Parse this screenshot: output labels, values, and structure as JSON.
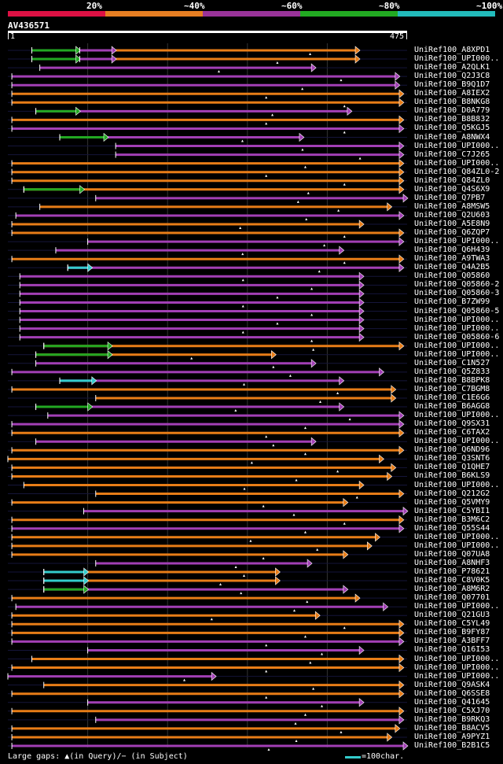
{
  "scale": {
    "labels": [
      "20%",
      "~40%",
      "~60%",
      "~80%",
      "~100%"
    ],
    "colors": [
      "#dd1144",
      "#e67e22",
      "#993399",
      "#22aa22",
      "#22bbbb"
    ]
  },
  "query": {
    "name": "AV436571",
    "start": "1",
    "end": "475"
  },
  "colors": {
    "orange": "#e87d17",
    "purple": "#a23fb5",
    "green": "#22a822",
    "cyan": "#33cccc"
  },
  "hits": [
    {
      "id": "UniRef100_A8XPD1",
      "c": "o",
      "a": 0.06,
      "b": 0.88,
      "segs": [
        [
          0.06,
          0.18,
          "g"
        ],
        [
          0.18,
          0.27,
          "p"
        ]
      ]
    },
    {
      "id": "UniRef100_UPI000..",
      "c": "o",
      "a": 0.06,
      "b": 0.88,
      "segs": [
        [
          0.06,
          0.18,
          "g"
        ],
        [
          0.18,
          0.27,
          "p"
        ]
      ]
    },
    {
      "id": "UniRef100_A2QLK1",
      "c": "p",
      "a": 0.08,
      "b": 0.77
    },
    {
      "id": "UniRef100_Q2J3C8",
      "c": "p",
      "a": 0.01,
      "b": 0.98
    },
    {
      "id": "UniRef100_B9Q1D7",
      "c": "p",
      "a": 0.01,
      "b": 0.98
    },
    {
      "id": "UniRef100_A8IEX2",
      "c": "o",
      "a": 0.01,
      "b": 0.99
    },
    {
      "id": "UniRef100_B8NKG8",
      "c": "o",
      "a": 0.01,
      "b": 0.99
    },
    {
      "id": "UniRef100_D0A779",
      "c": "p",
      "a": 0.07,
      "b": 0.86,
      "segs": [
        [
          0.07,
          0.18,
          "g"
        ]
      ]
    },
    {
      "id": "UniRef100_B8B832",
      "c": "o",
      "a": 0.01,
      "b": 0.99
    },
    {
      "id": "UniRef100_Q5KGJ5",
      "c": "p",
      "a": 0.01,
      "b": 0.99
    },
    {
      "id": "UniRef100_A8NWX4",
      "c": "p",
      "a": 0.13,
      "b": 0.74,
      "segs": [
        [
          0.13,
          0.25,
          "g"
        ]
      ]
    },
    {
      "id": "UniRef100_UPI000..",
      "c": "p",
      "a": 0.27,
      "b": 0.99
    },
    {
      "id": "UniRef100_C7J265",
      "c": "p",
      "a": 0.27,
      "b": 0.99
    },
    {
      "id": "UniRef100_UPI000..",
      "c": "o",
      "a": 0.01,
      "b": 0.99
    },
    {
      "id": "UniRef100_Q84ZL0-2",
      "c": "o",
      "a": 0.01,
      "b": 0.99
    },
    {
      "id": "UniRef100_Q84ZL0",
      "c": "o",
      "a": 0.01,
      "b": 0.99
    },
    {
      "id": "UniRef100_Q4S6X9",
      "c": "o",
      "a": 0.04,
      "b": 0.99,
      "segs": [
        [
          0.04,
          0.19,
          "g"
        ]
      ]
    },
    {
      "id": "UniRef100_Q7PB7",
      "c": "p",
      "a": 0.22,
      "b": 1.0
    },
    {
      "id": "UniRef100_A8MSW5",
      "c": "o",
      "a": 0.08,
      "b": 0.96
    },
    {
      "id": "UniRef100_Q2U603",
      "c": "p",
      "a": 0.02,
      "b": 0.99
    },
    {
      "id": "UniRef100_A5E8N9",
      "c": "o",
      "a": 0.01,
      "b": 0.89
    },
    {
      "id": "UniRef100_Q6ZQP7",
      "c": "o",
      "a": 0.01,
      "b": 0.99
    },
    {
      "id": "UniRef100_UPI000..",
      "c": "p",
      "a": 0.2,
      "b": 0.99
    },
    {
      "id": "UniRef100_Q6H439",
      "c": "p",
      "a": 0.12,
      "b": 0.84
    },
    {
      "id": "UniRef100_A9TWA3",
      "c": "o",
      "a": 0.01,
      "b": 0.99
    },
    {
      "id": "UniRef100_Q4A2B5",
      "c": "p",
      "a": 0.15,
      "b": 0.99,
      "segs": [
        [
          0.15,
          0.21,
          "c"
        ]
      ]
    },
    {
      "id": "UniRef100_Q05860",
      "c": "p",
      "a": 0.03,
      "b": 0.89
    },
    {
      "id": "UniRef100_Q05860-2",
      "c": "p",
      "a": 0.03,
      "b": 0.89
    },
    {
      "id": "UniRef100_Q05860-3",
      "c": "p",
      "a": 0.03,
      "b": 0.89
    },
    {
      "id": "UniRef100_B7ZW99",
      "c": "p",
      "a": 0.03,
      "b": 0.89
    },
    {
      "id": "UniRef100_Q05860-5",
      "c": "p",
      "a": 0.03,
      "b": 0.89
    },
    {
      "id": "UniRef100_UPI000..",
      "c": "p",
      "a": 0.03,
      "b": 0.89
    },
    {
      "id": "UniRef100_UPI000..",
      "c": "p",
      "a": 0.03,
      "b": 0.89
    },
    {
      "id": "UniRef100_Q05860-6",
      "c": "p",
      "a": 0.03,
      "b": 0.89
    },
    {
      "id": "UniRef100_UPI000..",
      "c": "o",
      "a": 0.09,
      "b": 0.99,
      "segs": [
        [
          0.09,
          0.26,
          "g"
        ]
      ]
    },
    {
      "id": "UniRef100_UPI000..",
      "c": "o",
      "a": 0.07,
      "b": 0.67,
      "segs": [
        [
          0.07,
          0.26,
          "g"
        ]
      ]
    },
    {
      "id": "UniRef100_C1N527",
      "c": "p",
      "a": 0.07,
      "b": 0.77
    },
    {
      "id": "UniRef100_Q5Z833",
      "c": "p",
      "a": 0.01,
      "b": 0.94
    },
    {
      "id": "UniRef100_B8BPK8",
      "c": "p",
      "a": 0.13,
      "b": 0.84,
      "segs": [
        [
          0.13,
          0.22,
          "c"
        ]
      ]
    },
    {
      "id": "UniRef100_C7BGM8",
      "c": "o",
      "a": 0.01,
      "b": 0.97
    },
    {
      "id": "UniRef100_C1E6G6",
      "c": "o",
      "a": 0.22,
      "b": 0.97
    },
    {
      "id": "UniRef100_B6AGG8",
      "c": "p",
      "a": 0.07,
      "b": 0.84,
      "segs": [
        [
          0.07,
          0.21,
          "g"
        ]
      ]
    },
    {
      "id": "UniRef100_UPI000..",
      "c": "p",
      "a": 0.1,
      "b": 0.99
    },
    {
      "id": "UniRef100_Q9SX31",
      "c": "p",
      "a": 0.01,
      "b": 0.99
    },
    {
      "id": "UniRef100_C6TAX2",
      "c": "o",
      "a": 0.01,
      "b": 0.99
    },
    {
      "id": "UniRef100_UPI000..",
      "c": "p",
      "a": 0.07,
      "b": 0.77
    },
    {
      "id": "UniRef100_Q6ND96",
      "c": "o",
      "a": 0.01,
      "b": 0.99
    },
    {
      "id": "UniRef100_Q3SNT6",
      "c": "o",
      "a": 0.0,
      "b": 0.94
    },
    {
      "id": "UniRef100_Q1QHE7",
      "c": "o",
      "a": 0.01,
      "b": 0.97
    },
    {
      "id": "UniRef100_B6KLS9",
      "c": "o",
      "a": 0.01,
      "b": 0.96
    },
    {
      "id": "UniRef100_UPI000..",
      "c": "o",
      "a": 0.04,
      "b": 0.89
    },
    {
      "id": "UniRef100_Q212G2",
      "c": "o",
      "a": 0.22,
      "b": 0.99
    },
    {
      "id": "UniRef100_Q5VMY9",
      "c": "o",
      "a": 0.01,
      "b": 0.85
    },
    {
      "id": "UniRef100_C5YBI1",
      "c": "p",
      "a": 0.19,
      "b": 1.0
    },
    {
      "id": "UniRef100_B3M6C2",
      "c": "o",
      "a": 0.01,
      "b": 0.99
    },
    {
      "id": "UniRef100_Q55S44",
      "c": "p",
      "a": 0.01,
      "b": 0.99
    },
    {
      "id": "UniRef100_UPI000..",
      "c": "o",
      "a": 0.01,
      "b": 0.93
    },
    {
      "id": "UniRef100_UPI000..",
      "c": "o",
      "a": 0.01,
      "b": 0.91
    },
    {
      "id": "UniRef100_Q07UA8",
      "c": "o",
      "a": 0.01,
      "b": 0.85
    },
    {
      "id": "UniRef100_A8NHF3",
      "c": "p",
      "a": 0.22,
      "b": 0.76
    },
    {
      "id": "UniRef100_P78621",
      "c": "o",
      "a": 0.09,
      "b": 0.68,
      "segs": [
        [
          0.09,
          0.2,
          "c"
        ]
      ]
    },
    {
      "id": "UniRef100_C8V0K5",
      "c": "o",
      "a": 0.09,
      "b": 0.68,
      "segs": [
        [
          0.09,
          0.2,
          "c"
        ]
      ]
    },
    {
      "id": "UniRef100_A8M6R2",
      "c": "p",
      "a": 0.09,
      "b": 0.85,
      "segs": [
        [
          0.09,
          0.2,
          "g"
        ]
      ]
    },
    {
      "id": "UniRef100_Q07701",
      "c": "o",
      "a": 0.01,
      "b": 0.88
    },
    {
      "id": "UniRef100_UPI000..",
      "c": "p",
      "a": 0.02,
      "b": 0.95
    },
    {
      "id": "UniRef100_Q21GU3",
      "c": "o",
      "a": 0.01,
      "b": 0.78
    },
    {
      "id": "UniRef100_C5YL49",
      "c": "o",
      "a": 0.01,
      "b": 0.99
    },
    {
      "id": "UniRef100_B9FY87",
      "c": "o",
      "a": 0.01,
      "b": 0.99
    },
    {
      "id": "UniRef100_A3BFF7",
      "c": "p",
      "a": 0.01,
      "b": 0.99
    },
    {
      "id": "UniRef100_Q16I53",
      "c": "p",
      "a": 0.2,
      "b": 0.89
    },
    {
      "id": "UniRef100_UPI000..",
      "c": "o",
      "a": 0.06,
      "b": 0.99
    },
    {
      "id": "UniRef100_UPI000..",
      "c": "o",
      "a": 0.01,
      "b": 0.99
    },
    {
      "id": "UniRef100_UPI000..",
      "c": "p",
      "a": 0.0,
      "b": 0.52
    },
    {
      "id": "UniRef100_Q9ASK4",
      "c": "o",
      "a": 0.09,
      "b": 0.99
    },
    {
      "id": "UniRef100_Q6SSE8",
      "c": "o",
      "a": 0.01,
      "b": 0.99
    },
    {
      "id": "UniRef100_Q41645",
      "c": "p",
      "a": 0.2,
      "b": 0.89
    },
    {
      "id": "UniRef100_C5XJ70",
      "c": "o",
      "a": 0.01,
      "b": 0.99
    },
    {
      "id": "UniRef100_B9RKQ3",
      "c": "p",
      "a": 0.22,
      "b": 0.99
    },
    {
      "id": "UniRef100_B8ACV5",
      "c": "o",
      "a": 0.01,
      "b": 0.98
    },
    {
      "id": "UniRef100_A9PYZ1",
      "c": "o",
      "a": 0.01,
      "b": 0.96
    },
    {
      "id": "UniRef100_B2B1C5",
      "c": "p",
      "a": 0.01,
      "b": 1.0
    }
  ],
  "legend": {
    "gaps": "Large gaps: ▲(in Query)/− (in Subject)",
    "key": "=100char."
  }
}
